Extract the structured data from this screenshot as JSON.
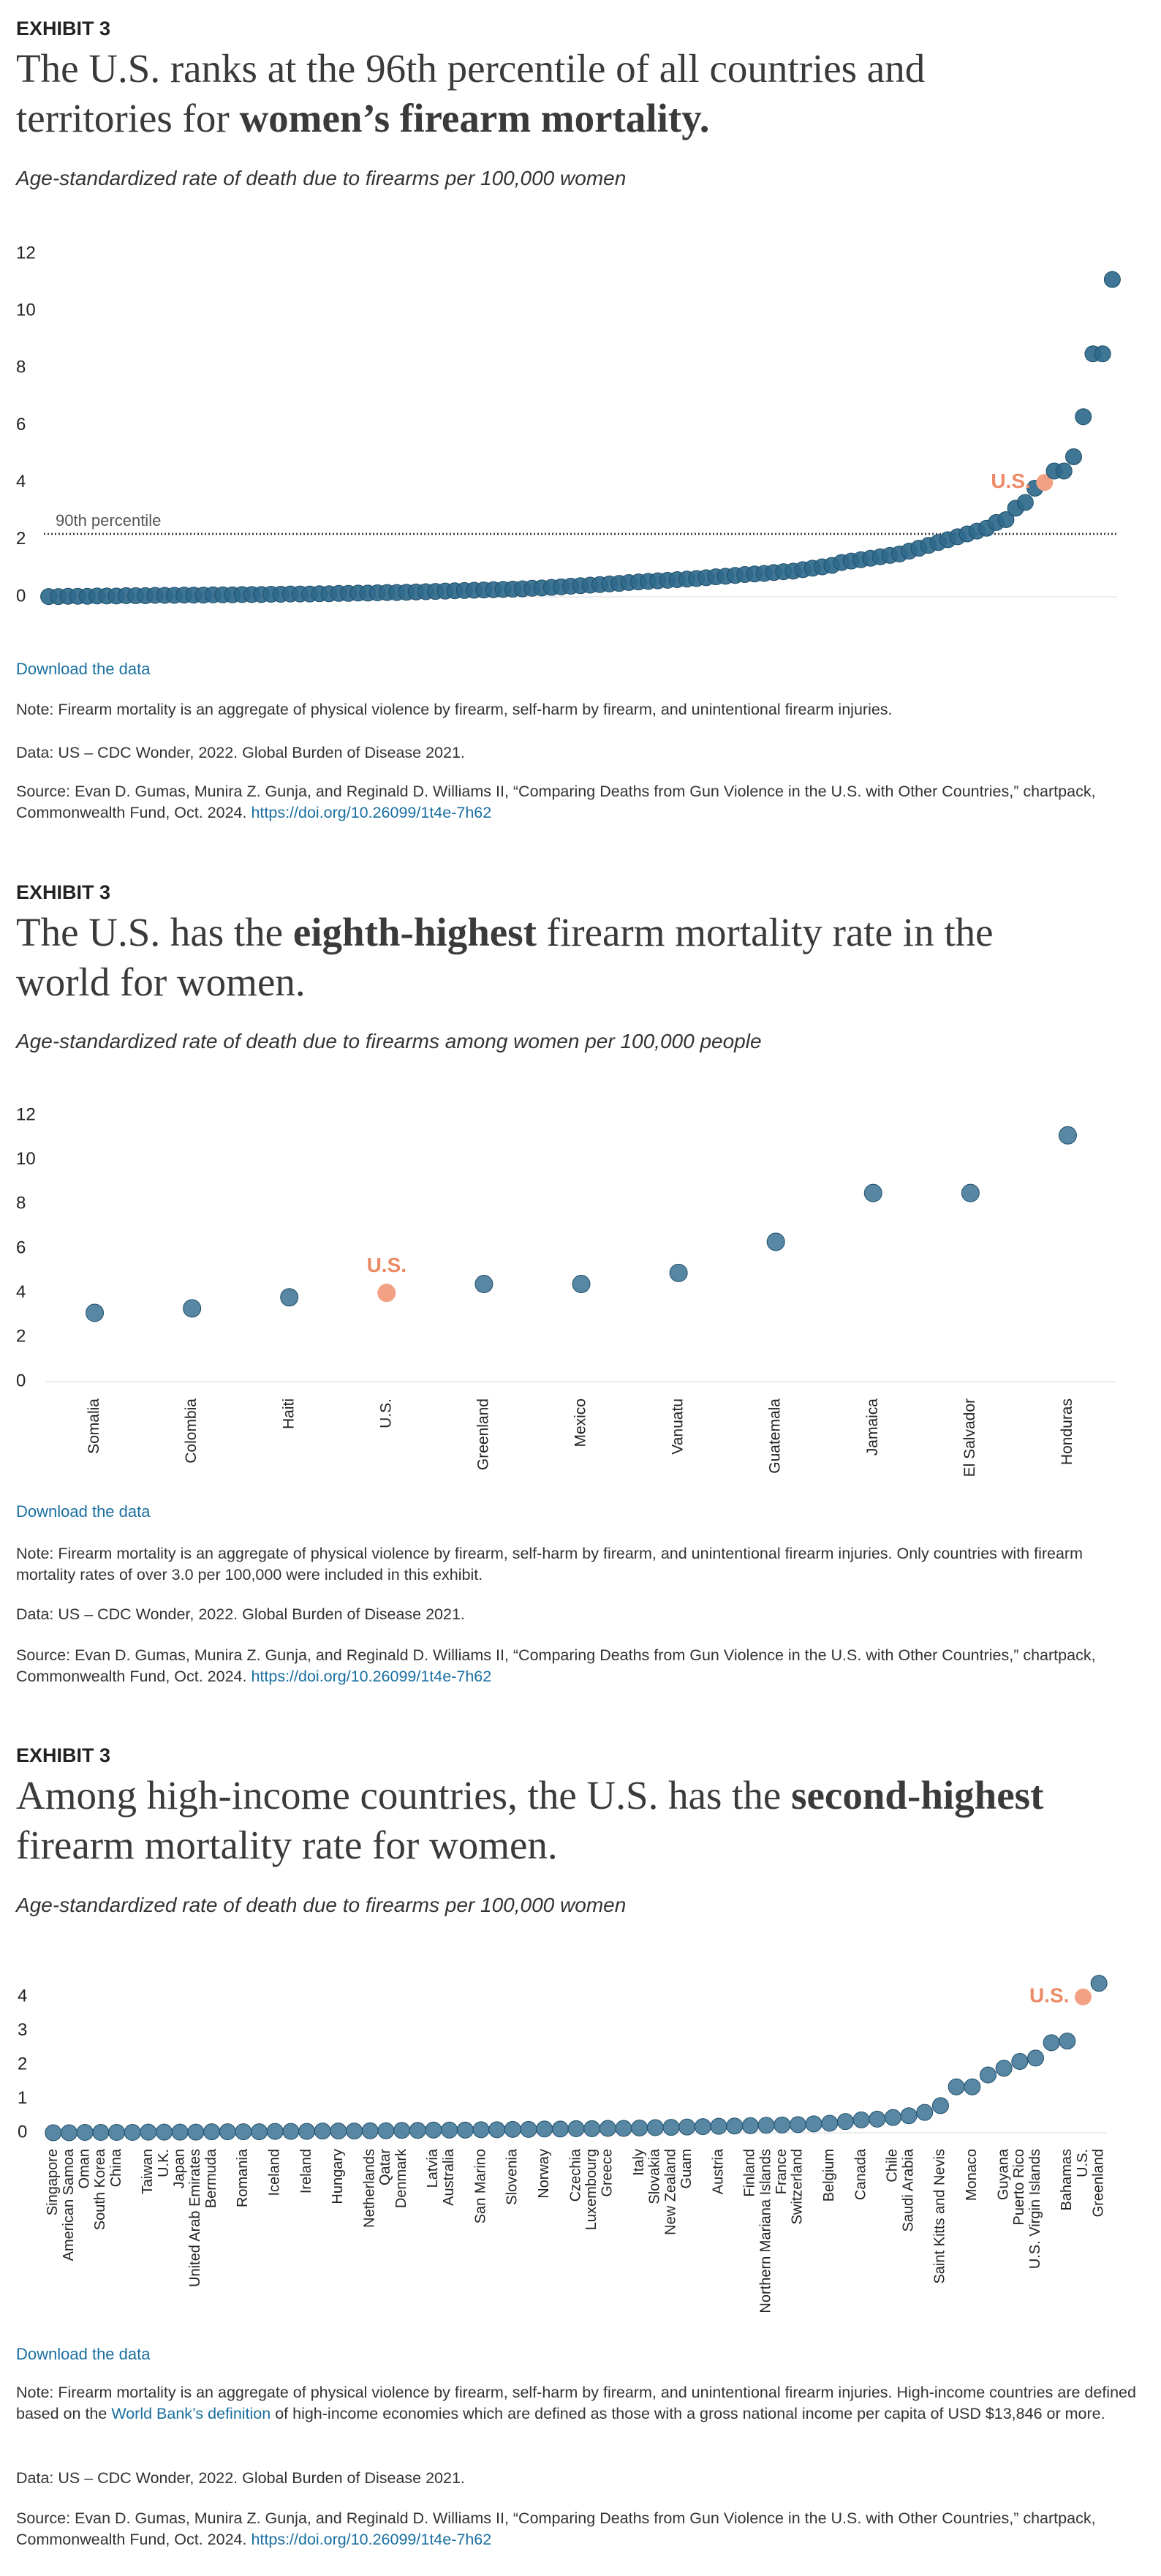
{
  "chart_data": [
    {
      "type": "scatter",
      "kicker": "EXHIBIT 3",
      "title_parts": [
        {
          "text": "The U.S. ranks at the 96th percentile of all countries and territories for "
        },
        {
          "text": "women’s firearm mortality.",
          "bold": true
        }
      ],
      "subtitle": "Age-standardized rate of death due to firearms per 100,000 women",
      "show_category_labels": false,
      "categories": [
        null,
        null,
        null,
        null,
        null,
        null,
        null,
        null,
        null,
        null,
        null,
        null,
        null,
        null,
        null,
        null,
        null,
        null,
        null,
        null,
        null,
        null,
        null,
        null,
        null,
        null,
        null,
        null,
        null,
        null,
        null,
        null,
        null,
        null,
        null,
        null,
        null,
        null,
        null,
        null,
        null,
        null,
        null,
        null,
        null,
        null,
        null,
        null,
        null,
        null,
        null,
        null,
        null,
        null,
        null,
        null,
        null,
        null,
        null,
        null,
        null,
        null,
        null,
        null,
        null,
        null,
        null,
        null,
        null,
        null,
        null,
        null,
        null,
        null,
        null,
        null,
        null,
        null,
        null,
        null,
        null,
        null,
        null,
        null,
        null,
        null,
        null,
        null,
        null,
        null,
        null,
        null,
        null,
        null,
        null,
        null,
        null,
        null,
        null,
        null,
        null,
        null,
        null,
        "U.S.",
        null,
        null,
        null,
        null,
        null,
        null,
        null
      ],
      "values": [
        0.01,
        0.01,
        0.02,
        0.02,
        0.02,
        0.03,
        0.03,
        0.03,
        0.04,
        0.04,
        0.04,
        0.05,
        0.05,
        0.05,
        0.06,
        0.06,
        0.06,
        0.07,
        0.07,
        0.07,
        0.08,
        0.08,
        0.08,
        0.09,
        0.09,
        0.1,
        0.1,
        0.1,
        0.11,
        0.11,
        0.12,
        0.12,
        0.13,
        0.13,
        0.14,
        0.15,
        0.15,
        0.16,
        0.17,
        0.18,
        0.19,
        0.2,
        0.21,
        0.22,
        0.23,
        0.24,
        0.25,
        0.26,
        0.27,
        0.28,
        0.3,
        0.31,
        0.33,
        0.35,
        0.37,
        0.39,
        0.41,
        0.43,
        0.45,
        0.47,
        0.5,
        0.52,
        0.54,
        0.56,
        0.58,
        0.6,
        0.62,
        0.64,
        0.67,
        0.7,
        0.72,
        0.75,
        0.78,
        0.8,
        0.82,
        0.85,
        0.88,
        0.9,
        0.95,
        1.0,
        1.05,
        1.1,
        1.2,
        1.25,
        1.3,
        1.35,
        1.4,
        1.45,
        1.5,
        1.6,
        1.7,
        1.8,
        1.9,
        2.0,
        2.1,
        2.2,
        2.3,
        2.4,
        2.6,
        2.7,
        3.1,
        3.3,
        3.8,
        4.0,
        4.4,
        4.4,
        4.9,
        6.3,
        8.5,
        8.5,
        11.1
      ],
      "color": "#2f6a8c",
      "highlight": {
        "label": "U.S.",
        "color": "#f2a184",
        "label_color": "#ec8a66",
        "label_position": "left"
      },
      "reference_line": {
        "value": 2.2,
        "label": "90th percentile"
      },
      "ylim": [
        0,
        12
      ],
      "yticks": [
        0,
        2,
        4,
        6,
        8,
        10,
        12
      ],
      "grid": false,
      "download_link": "Download the data",
      "notes": [
        [
          {
            "text": "Note: Firearm mortality is an aggregate of physical violence by firearm, self-harm by firearm, and unintentional firearm injuries."
          }
        ],
        [
          {
            "text": "Data: US – CDC Wonder, 2022. Global Burden of Disease 2021."
          }
        ],
        [
          {
            "text": "Source: Evan D. Gumas, Munira Z. Gunja, and Reginald D. Williams II, “Comparing Deaths from Gun Violence in the U.S. with Other Countries,” chartpack, Commonwealth Fund, Oct. 2024. "
          },
          {
            "text": "https://doi.org/10.26099/1t4e-7h62",
            "link": true
          }
        ]
      ]
    },
    {
      "type": "scatter",
      "kicker": "EXHIBIT 3",
      "title_parts": [
        {
          "text": "The U.S. has the "
        },
        {
          "text": "eighth-highest",
          "bold": true
        },
        {
          "text": " firearm mortality rate in the world for women."
        }
      ],
      "subtitle": "Age-standardized rate of death due to firearms among women per 100,000 people",
      "show_category_labels": true,
      "categories": [
        "Somalia",
        "Colombia",
        "Haiti",
        "U.S.",
        "Greenland",
        "Mexico",
        "Vanuatu",
        "Guatemala",
        "Jamaica",
        "El Salvador",
        "Honduras"
      ],
      "values": [
        3.1,
        3.3,
        3.8,
        4.0,
        4.4,
        4.4,
        4.9,
        6.3,
        8.5,
        8.5,
        11.1
      ],
      "color": "#4a7d9c",
      "highlight": {
        "label": "U.S.",
        "color": "#f2a184",
        "label_color": "#ec8a66",
        "label_position": "above"
      },
      "ylim": [
        0,
        12
      ],
      "yticks": [
        0,
        2,
        4,
        6,
        8,
        10,
        12
      ],
      "grid": false,
      "download_link": "Download the data",
      "notes": [
        [
          {
            "text": "Note: Firearm mortality is an aggregate of physical violence by firearm, self-harm by firearm, and unintentional firearm injuries. Only countries with firearm mortality rates of over 3.0 per 100,000 were included in this exhibit."
          }
        ],
        [
          {
            "text": "Data: US – CDC Wonder, 2022. Global Burden of Disease 2021."
          }
        ],
        [
          {
            "text": "Source: Evan D. Gumas, Munira Z. Gunja, and Reginald D. Williams II, “Comparing Deaths from Gun Violence in the U.S. with Other Countries,” chartpack, Commonwealth Fund, Oct. 2024. "
          },
          {
            "text": "https://doi.org/10.26099/1t4e-7h62",
            "link": true
          }
        ]
      ]
    },
    {
      "type": "scatter",
      "kicker": "EXHIBIT 3",
      "title_parts": [
        {
          "text": "Among high-income countries, the U.S. has the "
        },
        {
          "text": "second-highest",
          "bold": true
        },
        {
          "text": " firearm mortality rate for women."
        }
      ],
      "subtitle": "Age-standardized rate of death due to firearms per 100,000 women",
      "show_category_labels": true,
      "categories": [
        "Singapore",
        "American Samoa",
        "Oman",
        "South Korea",
        "China",
        null,
        "Taiwan",
        "U.K.",
        "Japan",
        "United Arab Emirates",
        "Bermuda",
        null,
        "Romania",
        null,
        "Iceland",
        null,
        "Ireland",
        null,
        "Hungary",
        null,
        "Netherlands",
        "Qatar",
        "Denmark",
        null,
        "Latvia",
        "Australia",
        null,
        "San Marino",
        null,
        "Slovenia",
        null,
        "Norway",
        null,
        "Czechia",
        "Luxembourg",
        "Greece",
        null,
        "Italy",
        "Slovakia",
        "New Zealand",
        "Guam",
        null,
        "Austria",
        null,
        "Finland",
        "Northern Mariana Islands",
        "France",
        "Switzerland",
        null,
        "Belgium",
        null,
        "Canada",
        null,
        "Chile",
        "Saudi Arabia",
        null,
        "Saint Kitts and Nevis",
        null,
        "Monaco",
        null,
        "Guyana",
        "Puerto Rico",
        "U.S. Virgin Islands",
        null,
        "Bahamas",
        "U.S.",
        "Greenland"
      ],
      "values": [
        0,
        0,
        0.01,
        0.01,
        0.01,
        0.01,
        0.02,
        0.02,
        0.02,
        0.02,
        0.03,
        0.03,
        0.03,
        0.03,
        0.04,
        0.04,
        0.04,
        0.05,
        0.05,
        0.05,
        0.06,
        0.06,
        0.07,
        0.07,
        0.08,
        0.08,
        0.08,
        0.09,
        0.09,
        0.1,
        0.1,
        0.11,
        0.11,
        0.12,
        0.12,
        0.13,
        0.13,
        0.14,
        0.15,
        0.16,
        0.17,
        0.18,
        0.19,
        0.2,
        0.21,
        0.22,
        0.23,
        0.24,
        0.26,
        0.28,
        0.33,
        0.38,
        0.4,
        0.45,
        0.5,
        0.6,
        0.8,
        1.35,
        1.35,
        1.7,
        1.9,
        2.1,
        2.2,
        2.65,
        2.7,
        4.0,
        4.4
      ],
      "color": "#4a7d9c",
      "highlight": {
        "label": "U.S.",
        "color": "#f2a184",
        "label_color": "#ec8a66",
        "label_position": "left"
      },
      "ylim": [
        0,
        4.5
      ],
      "yticks": [
        0,
        1,
        2,
        3,
        4
      ],
      "grid": false,
      "download_link": "Download the data",
      "notes": [
        [
          {
            "text": "Note: Firearm mortality is an aggregate of physical violence by firearm, self-harm by firearm, and unintentional firearm injuries. High-income countries are defined based on the "
          },
          {
            "text": "World Bank’s definition",
            "link": true
          },
          {
            "text": " of high-income economies which are defined as those with a gross national income per capita of USD $13,846 or more."
          }
        ],
        [
          {
            "text": "Data: US – CDC Wonder, 2022. Global Burden of Disease 2021."
          }
        ],
        [
          {
            "text": "Source: Evan D. Gumas, Munira Z. Gunja, and Reginald D. Williams II, “Comparing Deaths from Gun Violence in the U.S. with Other Countries,” chartpack, Commonwealth Fund, Oct. 2024. "
          },
          {
            "text": "https://doi.org/10.26099/1t4e-7h62",
            "link": true
          }
        ]
      ]
    }
  ]
}
